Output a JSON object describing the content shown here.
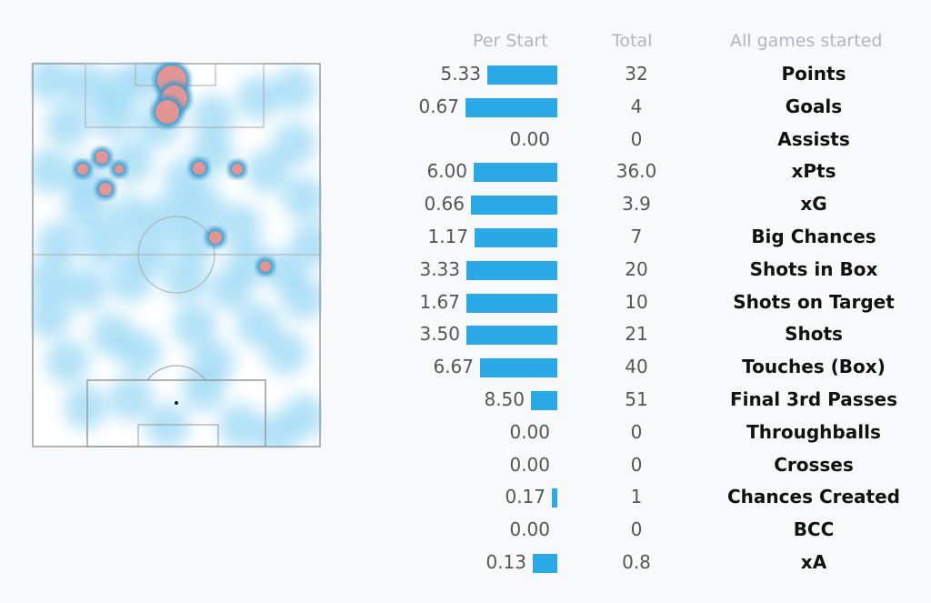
{
  "headers": {
    "per_start": "Per Start",
    "total": "Total",
    "all_games": "All games started"
  },
  "colors": {
    "bar": "#2aa9e6",
    "heat_low": "#8fd3f4",
    "heat_high": "#e07b7b"
  },
  "chart_data": {
    "type": "table",
    "columns": [
      "Per Start",
      "Total",
      "All games started"
    ],
    "rows": [
      {
        "label": "Points",
        "per_start": "5.33",
        "total": "32",
        "bar_fill": 0.76
      },
      {
        "label": "Goals",
        "per_start": "0.67",
        "total": "4",
        "bar_fill": 1.0
      },
      {
        "label": "Assists",
        "per_start": "0.00",
        "total": "0",
        "bar_fill": 0
      },
      {
        "label": "xPts",
        "per_start": "6.00",
        "total": "36.0",
        "bar_fill": 0.91
      },
      {
        "label": "xG",
        "per_start": "0.66",
        "total": "3.9",
        "bar_fill": 0.94
      },
      {
        "label": "Big Chances",
        "per_start": "1.17",
        "total": "7",
        "bar_fill": 0.9
      },
      {
        "label": "Shots in Box",
        "per_start": "3.33",
        "total": "20",
        "bar_fill": 0.99
      },
      {
        "label": "Shots on Target",
        "per_start": "1.67",
        "total": "10",
        "bar_fill": 0.99
      },
      {
        "label": "Shots",
        "per_start": "3.50",
        "total": "21",
        "bar_fill": 0.99
      },
      {
        "label": "Touches (Box)",
        "per_start": "6.67",
        "total": "40",
        "bar_fill": 0.84
      },
      {
        "label": "Final 3rd Passes",
        "per_start": "8.50",
        "total": "51",
        "bar_fill": 0.29
      },
      {
        "label": "Throughballs",
        "per_start": "0.00",
        "total": "0",
        "bar_fill": 0
      },
      {
        "label": "Crosses",
        "per_start": "0.00",
        "total": "0",
        "bar_fill": 0
      },
      {
        "label": "Chances Created",
        "per_start": "0.17",
        "total": "1",
        "bar_fill": 0.06
      },
      {
        "label": "BCC",
        "per_start": "0.00",
        "total": "0",
        "bar_fill": 0
      },
      {
        "label": "xA",
        "per_start": "0.13",
        "total": "0.8",
        "bar_fill": 0.27
      }
    ]
  }
}
